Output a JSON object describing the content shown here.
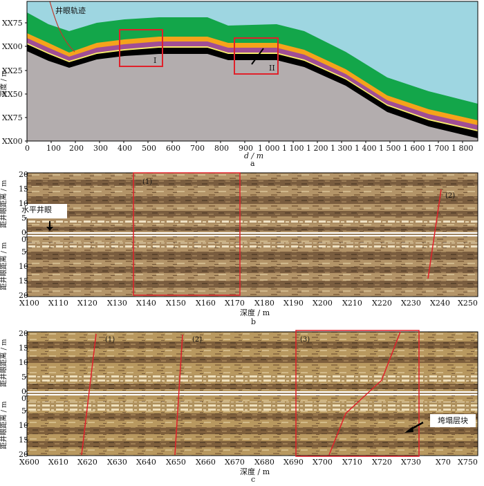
{
  "panel_a": {
    "track_label": "井眼轨迹",
    "ylabel": "深度 / m",
    "xlabel": "d / m",
    "caption": "a",
    "y_ticks": [
      "XX75",
      "XX00",
      "XX25",
      "XX50",
      "XX75",
      "XX00"
    ],
    "x_ticks": [
      "0",
      "100",
      "200",
      "300",
      "400",
      "500",
      "600",
      "700",
      "800",
      "900",
      "1 000",
      "1 100",
      "1 200",
      "1 300",
      "1 400",
      "1 500",
      "1 600",
      "1 700",
      "1 800"
    ],
    "box_labels": [
      "I",
      "II"
    ],
    "colors": {
      "sky": "#9ed6e1",
      "green": "#13a64a",
      "orange": "#f5a31b",
      "purple": "#a04e95",
      "yellow": "#f8ec6c",
      "black": "#000000",
      "rock": "#b3adae",
      "track": "#c0392b",
      "box": "#e0202a"
    }
  },
  "panel_b": {
    "ylabel": "距井眼距离 / m",
    "xlabel": "深度 / m",
    "caption": "b",
    "y_ticks_top": [
      "20",
      "15",
      "10",
      "5",
      "0"
    ],
    "y_ticks_bottom": [
      "0",
      "5",
      "10",
      "15",
      "20"
    ],
    "x_ticks": [
      "X100",
      "X110",
      "X120",
      "X130",
      "X140",
      "X150",
      "X160",
      "X170",
      "X180",
      "X190",
      "X200",
      "X210",
      "X220",
      "X230",
      "X240",
      "X250"
    ],
    "callout": "水平井眼",
    "marks": [
      "(1)",
      "(2)"
    ]
  },
  "panel_c": {
    "ylabel": "距井眼距离 / m",
    "xlabel": "深度 / m",
    "caption": "c",
    "y_ticks_top": [
      "20",
      "15",
      "10",
      "5",
      "0"
    ],
    "y_ticks_bottom": [
      "0",
      "5",
      "10",
      "15",
      "20"
    ],
    "x_ticks": [
      "X600",
      "X610",
      "X620",
      "X630",
      "X640",
      "X650",
      "X660",
      "X670",
      "X680",
      "X690",
      "X700",
      "X710",
      "X720",
      "X730",
      "X70",
      "X750"
    ],
    "callout": "垮塌层块",
    "marks": [
      "(1)",
      "(2)",
      "(3)"
    ]
  }
}
